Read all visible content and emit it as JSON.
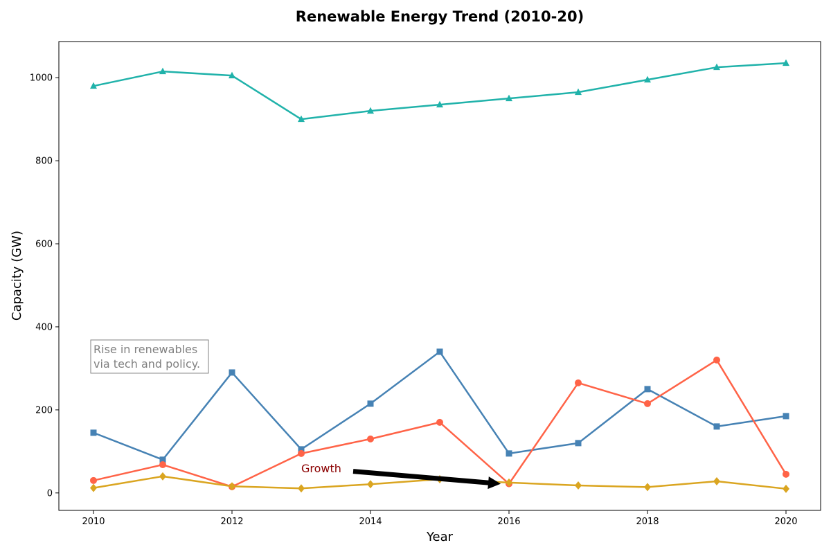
{
  "chart_data": {
    "type": "line",
    "title": "Renewable Energy Trend (2010-20)",
    "xlabel": "Year",
    "ylabel": "Capacity (GW)",
    "x": [
      2010,
      2011,
      2012,
      2013,
      2014,
      2015,
      2016,
      2017,
      2018,
      2019,
      2020
    ],
    "xlim": [
      2009.5,
      2020.5
    ],
    "ylim": [
      -42,
      1087
    ],
    "xticks": [
      2010,
      2012,
      2014,
      2016,
      2018,
      2020
    ],
    "yticks": [
      0,
      200,
      400,
      600,
      800,
      1000
    ],
    "grid": false,
    "legend": "none",
    "series": [
      {
        "color": "#20b2aa",
        "marker": "triangle",
        "values": [
          980,
          1015,
          1005,
          900,
          920,
          935,
          950,
          965,
          995,
          1025,
          1035
        ]
      },
      {
        "color": "#4682b4",
        "marker": "square",
        "values": [
          145,
          80,
          290,
          105,
          215,
          340,
          95,
          120,
          250,
          160,
          185
        ]
      },
      {
        "color": "#ff6347",
        "marker": "circle",
        "values": [
          30,
          68,
          15,
          95,
          130,
          170,
          22,
          265,
          215,
          320,
          45
        ]
      },
      {
        "color": "#daa520",
        "marker": "diamond",
        "values": [
          12,
          40,
          16,
          11,
          21,
          33,
          25,
          18,
          14,
          28,
          10
        ]
      }
    ],
    "annotations": [
      {
        "type": "box",
        "lines": [
          "Rise in renewables",
          "via tech and policy."
        ],
        "x": 2010,
        "y": 350
      },
      {
        "type": "arrow",
        "text": "Growth",
        "text_x": 2013,
        "text_y": 60,
        "arrow_from_x": 2013.75,
        "arrow_from_y": 52,
        "arrow_to_x": 2015.88,
        "arrow_to_y": 22
      }
    ]
  }
}
